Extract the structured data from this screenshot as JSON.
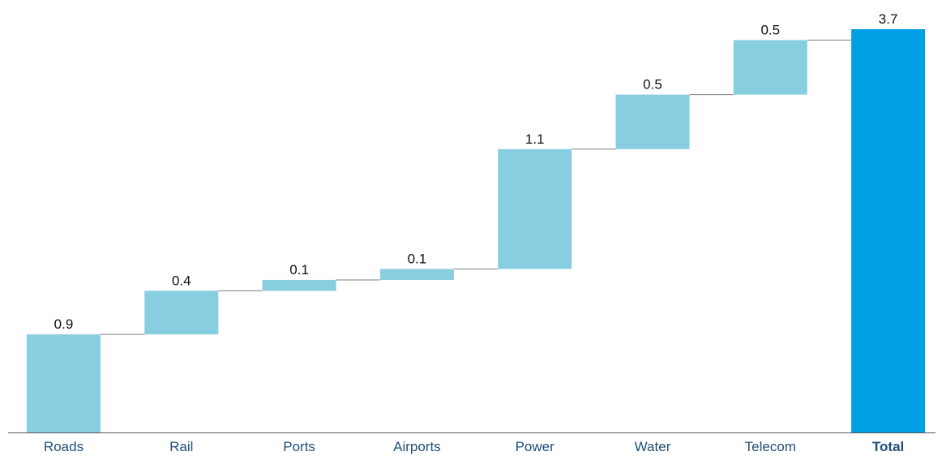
{
  "chart_data": {
    "type": "bar",
    "subtype": "waterfall",
    "title": "",
    "xlabel": "",
    "ylabel": "",
    "ylim": [
      0,
      3.7
    ],
    "grid": false,
    "categories": [
      "Roads",
      "Rail",
      "Ports",
      "Airports",
      "Power",
      "Water",
      "Telecom",
      "Total"
    ],
    "values": [
      0.9,
      0.4,
      0.1,
      0.1,
      1.1,
      0.5,
      0.5,
      3.7
    ],
    "value_labels": [
      "0.9",
      "0.4",
      "0.1",
      "0.1",
      "1.1",
      "0.5",
      "0.5",
      "3.7"
    ],
    "is_total": [
      false,
      false,
      false,
      false,
      false,
      false,
      false,
      true
    ],
    "colors": {
      "increment": "#87CEE1",
      "total": "#009FE3",
      "category_text": "#1F4E79",
      "connector": "#7f7f7f",
      "axis": "#555555"
    }
  }
}
